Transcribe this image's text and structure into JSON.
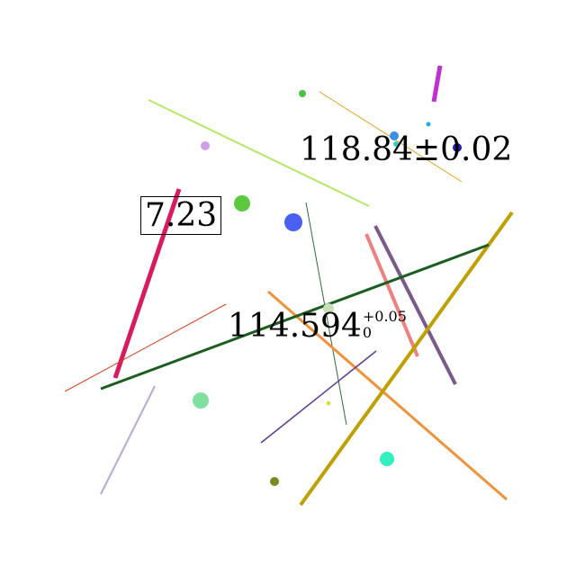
{
  "labels": {
    "boxed": "7.23",
    "plus_minus": "118.84±0.02",
    "main_value": "114.594",
    "upper_script": "+0.05",
    "lower_script": "0"
  },
  "colors": {
    "lime_line": "#b5e86a",
    "orange_thin": "#e8a21a",
    "magenta_bar": "#c030d0",
    "crimson_bar": "#d81b60",
    "dark_green_line": "#1b5e20",
    "olive_line": "#c0a000",
    "orange_line": "#f0923a",
    "salmon_line": "#f08080",
    "purple_line": "#7a5a8a",
    "red_thin": "#d84020",
    "indigo_line": "#5a3a9a",
    "lavender_line": "#b8a8d8",
    "thin_dark_green": "#2e6b3e"
  }
}
